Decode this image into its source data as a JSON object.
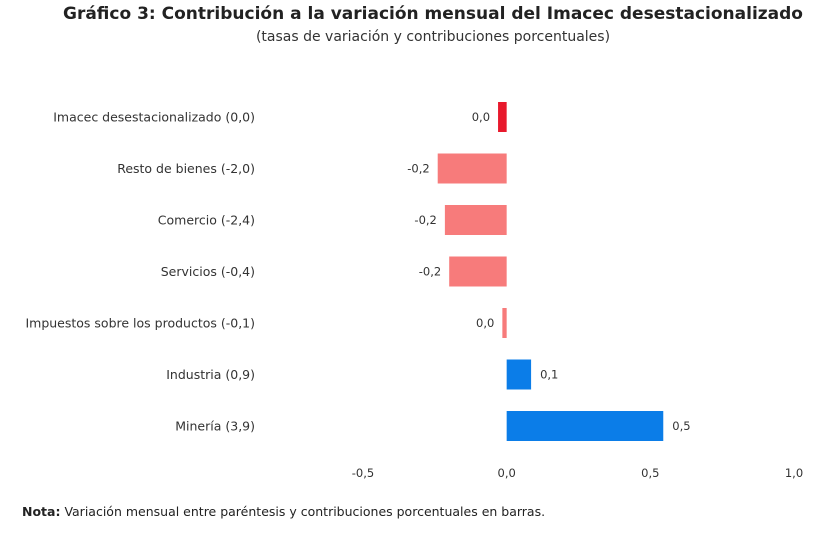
{
  "chart_data": {
    "type": "bar",
    "orientation": "horizontal",
    "title": "Gráfico 3: Contribución a la variación mensual del Imacec desestacionalizado",
    "subtitle": "(tasas de variación y contribuciones porcentuales)",
    "categories": [
      "Imacec desestacionalizado (0,0)",
      "Resto de bienes (-2,0)",
      "Comercio (-2,4)",
      "Servicios (-0,4)",
      "Impuestos sobre los productos (-0,1)",
      "Industria (0,9)",
      "Minería (3,9)"
    ],
    "values": [
      -0.03,
      -0.24,
      -0.215,
      -0.2,
      -0.015,
      0.085,
      0.545
    ],
    "value_labels": [
      "0,0",
      "-0,2",
      "-0,2",
      "-0,2",
      "0,0",
      "0,1",
      "0,5"
    ],
    "colors": [
      "#e8192c",
      "#f77b7b",
      "#f77b7b",
      "#f77b7b",
      "#f77b7b",
      "#0b7de8",
      "#0b7de8"
    ],
    "xlim": [
      -0.5,
      1.0
    ],
    "xticks": [
      -0.5,
      0.0,
      0.5,
      1.0
    ],
    "xtick_labels": [
      "-0,5",
      "0,0",
      "0,5",
      "1,0"
    ],
    "grid": false,
    "legend": "none"
  },
  "note": {
    "bold": "Nota:",
    "text": " Variación mensual entre paréntesis y contribuciones porcentuales en barras."
  }
}
